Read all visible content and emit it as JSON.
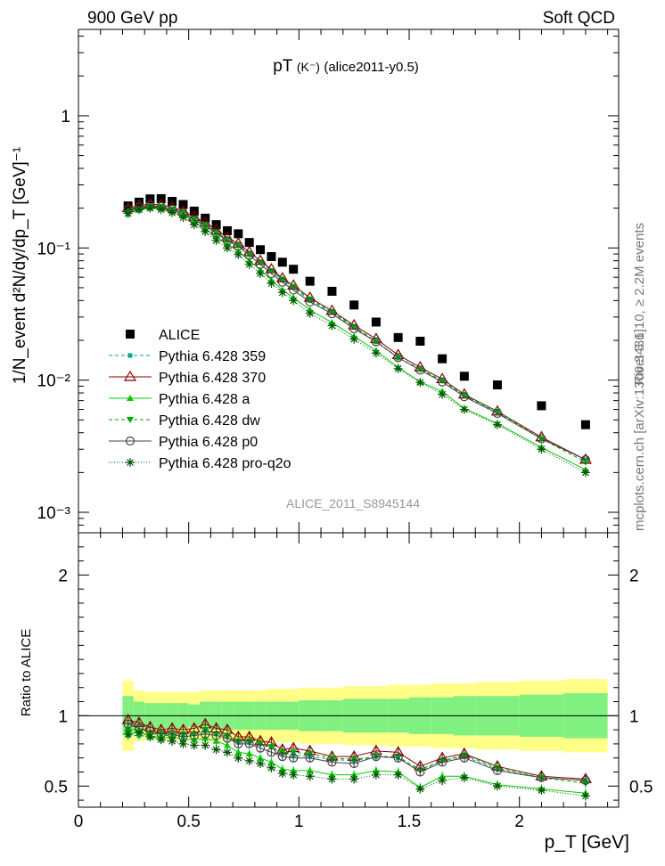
{
  "header": {
    "left_label": "900 GeV pp",
    "right_label": "Soft QCD"
  },
  "side_text": {
    "rivet": "Rivet 3.1.10, ≥ 2.2M events",
    "mcplots": "mcplots.cern.ch [arXiv:1306.3436]"
  },
  "chart_data": [
    {
      "type": "scatter",
      "panel": "main",
      "title_main": "pT",
      "title_particle": "(K⁻)",
      "title_tag": "(alice2011-y0.5)",
      "watermark": "ALICE_2011_S8945144",
      "ylabel": "1/N_event d²N/dy/dp_T [GeV]⁻¹",
      "yscale": "log",
      "ylim": [
        0.0007,
        4.5
      ],
      "xlim": [
        0,
        2.45
      ],
      "ytick_labels": [
        "10⁻³",
        "10⁻²",
        "10⁻¹",
        "1"
      ],
      "legend_position": "left-middle",
      "x": [
        0.225,
        0.275,
        0.325,
        0.375,
        0.425,
        0.475,
        0.525,
        0.575,
        0.625,
        0.675,
        0.725,
        0.775,
        0.825,
        0.875,
        0.925,
        0.975,
        1.05,
        1.15,
        1.25,
        1.35,
        1.45,
        1.55,
        1.65,
        1.75,
        1.9,
        2.1,
        2.3
      ],
      "series": [
        {
          "name": "ALICE",
          "color": "#000000",
          "marker": "square",
          "values": [
            0.208,
            0.222,
            0.235,
            0.236,
            0.225,
            0.213,
            0.19,
            0.168,
            0.15,
            0.135,
            0.128,
            0.11,
            0.097,
            0.086,
            0.078,
            0.069,
            0.056,
            0.047,
            0.037,
            0.0275,
            0.021,
            0.0197,
            0.0145,
            0.0107,
            0.0092,
            0.0064,
            0.0046
          ]
        },
        {
          "name": "Pythia 6.428 359",
          "color": "#00aa88",
          "marker": "small-square",
          "dash": "4,3",
          "values": [
            0.18,
            0.192,
            0.2,
            0.202,
            0.195,
            0.182,
            0.165,
            0.149,
            0.13,
            0.115,
            0.104,
            0.089,
            0.078,
            0.067,
            0.057,
            0.05,
            0.04,
            0.0325,
            0.025,
            0.0195,
            0.0147,
            0.0122,
            0.0099,
            0.0076,
            0.0057,
            0.0036,
            0.0025
          ]
        },
        {
          "name": "Pythia 6.428 370",
          "color": "#880000",
          "marker": "open-triangle",
          "values": [
            0.2,
            0.21,
            0.215,
            0.212,
            0.203,
            0.19,
            0.172,
            0.155,
            0.136,
            0.12,
            0.108,
            0.093,
            0.08,
            0.069,
            0.059,
            0.052,
            0.042,
            0.0335,
            0.026,
            0.0205,
            0.0155,
            0.0125,
            0.0102,
            0.0078,
            0.0058,
            0.0037,
            0.0025
          ]
        },
        {
          "name": "Pythia 6.428 a",
          "color": "#00cc00",
          "marker": "triangle",
          "values": [
            0.19,
            0.198,
            0.2,
            0.198,
            0.19,
            0.176,
            0.158,
            0.14,
            0.122,
            0.107,
            0.094,
            0.08,
            0.068,
            0.057,
            0.048,
            0.042,
            0.034,
            0.0272,
            0.0214,
            0.0167,
            0.0125,
            0.0097,
            0.0082,
            0.0061,
            0.0047,
            0.0031,
            0.0021
          ]
        },
        {
          "name": "Pythia 6.428 dw",
          "color": "#00aa00",
          "marker": "down-triangle",
          "dash": "4,3",
          "values": [
            0.185,
            0.196,
            0.205,
            0.205,
            0.196,
            0.185,
            0.166,
            0.151,
            0.131,
            0.116,
            0.105,
            0.09,
            0.078,
            0.067,
            0.058,
            0.051,
            0.041,
            0.033,
            0.0254,
            0.0196,
            0.0148,
            0.012,
            0.0099,
            0.0077,
            0.0058,
            0.0036,
            0.0024
          ]
        },
        {
          "name": "Pythia 6.428 p0",
          "color": "#444444",
          "marker": "open-circle",
          "values": [
            0.195,
            0.203,
            0.21,
            0.205,
            0.196,
            0.181,
            0.163,
            0.147,
            0.129,
            0.113,
            0.103,
            0.088,
            0.075,
            0.064,
            0.055,
            0.048,
            0.039,
            0.0318,
            0.0245,
            0.0195,
            0.0148,
            0.0119,
            0.0097,
            0.0075,
            0.0056,
            0.0036,
            0.0025
          ]
        },
        {
          "name": "Pythia 6.428 pro-q2o",
          "color": "#005500",
          "marker": "star",
          "dash": "1,2",
          "values": [
            0.182,
            0.195,
            0.2,
            0.195,
            0.185,
            0.17,
            0.15,
            0.133,
            0.114,
            0.1,
            0.089,
            0.075,
            0.064,
            0.054,
            0.046,
            0.04,
            0.032,
            0.0258,
            0.0204,
            0.016,
            0.0122,
            0.0096,
            0.0078,
            0.006,
            0.0046,
            0.003,
            0.002
          ]
        }
      ]
    },
    {
      "type": "scatter",
      "panel": "ratio",
      "ylabel": "Ratio to ALICE",
      "xlabel": "p_T [GeV]",
      "ylim": [
        0.35,
        2.3
      ],
      "xlim": [
        0,
        2.45
      ],
      "xtick_labels": [
        "0",
        "0.5",
        "1",
        "1.5",
        "2"
      ],
      "ytick_labels": [
        "0.5",
        "1",
        "2"
      ],
      "x": [
        0.225,
        0.275,
        0.325,
        0.375,
        0.425,
        0.475,
        0.525,
        0.575,
        0.625,
        0.675,
        0.725,
        0.775,
        0.825,
        0.875,
        0.925,
        0.975,
        1.05,
        1.15,
        1.25,
        1.35,
        1.45,
        1.55,
        1.65,
        1.75,
        1.9,
        2.1,
        2.3
      ],
      "band_edges": [
        0.2,
        0.25,
        0.3,
        0.35,
        0.4,
        0.45,
        0.5,
        0.55,
        0.6,
        0.65,
        0.7,
        0.75,
        0.8,
        0.85,
        0.9,
        0.95,
        1.0,
        1.1,
        1.2,
        1.3,
        1.4,
        1.5,
        1.6,
        1.7,
        1.8,
        2.0,
        2.2,
        2.4
      ],
      "band_green_halfwidth": [
        0.14,
        0.1,
        0.09,
        0.09,
        0.09,
        0.09,
        0.08,
        0.1,
        0.1,
        0.1,
        0.1,
        0.1,
        0.1,
        0.1,
        0.1,
        0.1,
        0.11,
        0.11,
        0.12,
        0.12,
        0.12,
        0.13,
        0.13,
        0.14,
        0.14,
        0.15,
        0.16
      ],
      "band_yellow_halfwidth": [
        0.25,
        0.18,
        0.17,
        0.17,
        0.17,
        0.17,
        0.17,
        0.18,
        0.18,
        0.18,
        0.18,
        0.18,
        0.18,
        0.19,
        0.19,
        0.19,
        0.2,
        0.2,
        0.21,
        0.21,
        0.22,
        0.22,
        0.23,
        0.23,
        0.24,
        0.25,
        0.26
      ],
      "band_colors": {
        "green": "#80f080",
        "yellow": "#ffff88"
      },
      "series": [
        {
          "name": "Pythia 6.428 359",
          "color": "#00aa88",
          "marker": "small-square",
          "dash": "4,3",
          "values": [
            0.86,
            0.86,
            0.85,
            0.86,
            0.86,
            0.85,
            0.87,
            0.89,
            0.87,
            0.85,
            0.81,
            0.81,
            0.8,
            0.78,
            0.73,
            0.72,
            0.71,
            0.69,
            0.68,
            0.71,
            0.7,
            0.62,
            0.68,
            0.71,
            0.62,
            0.56,
            0.54
          ]
        },
        {
          "name": "Pythia 6.428 370",
          "color": "#880000",
          "marker": "open-triangle",
          "values": [
            0.97,
            0.95,
            0.92,
            0.9,
            0.91,
            0.9,
            0.91,
            0.94,
            0.91,
            0.9,
            0.85,
            0.85,
            0.82,
            0.81,
            0.76,
            0.77,
            0.75,
            0.71,
            0.71,
            0.75,
            0.74,
            0.64,
            0.7,
            0.73,
            0.64,
            0.57,
            0.55
          ]
        },
        {
          "name": "Pythia 6.428 a",
          "color": "#00cc00",
          "marker": "triangle",
          "values": [
            0.91,
            0.89,
            0.85,
            0.84,
            0.85,
            0.83,
            0.83,
            0.84,
            0.82,
            0.79,
            0.74,
            0.73,
            0.7,
            0.67,
            0.62,
            0.61,
            0.61,
            0.58,
            0.58,
            0.61,
            0.6,
            0.49,
            0.57,
            0.57,
            0.51,
            0.48,
            0.45
          ]
        },
        {
          "name": "Pythia 6.428 dw",
          "color": "#00aa00",
          "marker": "down-triangle",
          "dash": "4,3",
          "values": [
            0.89,
            0.88,
            0.87,
            0.87,
            0.87,
            0.87,
            0.87,
            0.9,
            0.87,
            0.86,
            0.82,
            0.82,
            0.8,
            0.78,
            0.74,
            0.74,
            0.73,
            0.7,
            0.69,
            0.71,
            0.71,
            0.61,
            0.68,
            0.72,
            0.63,
            0.56,
            0.52
          ]
        },
        {
          "name": "Pythia 6.428 p0",
          "color": "#444444",
          "marker": "open-circle",
          "values": [
            0.94,
            0.91,
            0.89,
            0.87,
            0.87,
            0.85,
            0.86,
            0.87,
            0.86,
            0.84,
            0.8,
            0.8,
            0.77,
            0.74,
            0.71,
            0.7,
            0.7,
            0.67,
            0.66,
            0.71,
            0.7,
            0.6,
            0.67,
            0.7,
            0.61,
            0.56,
            0.54
          ]
        },
        {
          "name": "Pythia 6.428 pro-q2o",
          "color": "#005500",
          "marker": "star",
          "dash": "1,2",
          "values": [
            0.87,
            0.88,
            0.85,
            0.83,
            0.82,
            0.8,
            0.79,
            0.79,
            0.76,
            0.74,
            0.7,
            0.68,
            0.66,
            0.63,
            0.59,
            0.58,
            0.57,
            0.55,
            0.55,
            0.58,
            0.58,
            0.48,
            0.54,
            0.56,
            0.5,
            0.47,
            0.43
          ]
        }
      ]
    }
  ]
}
